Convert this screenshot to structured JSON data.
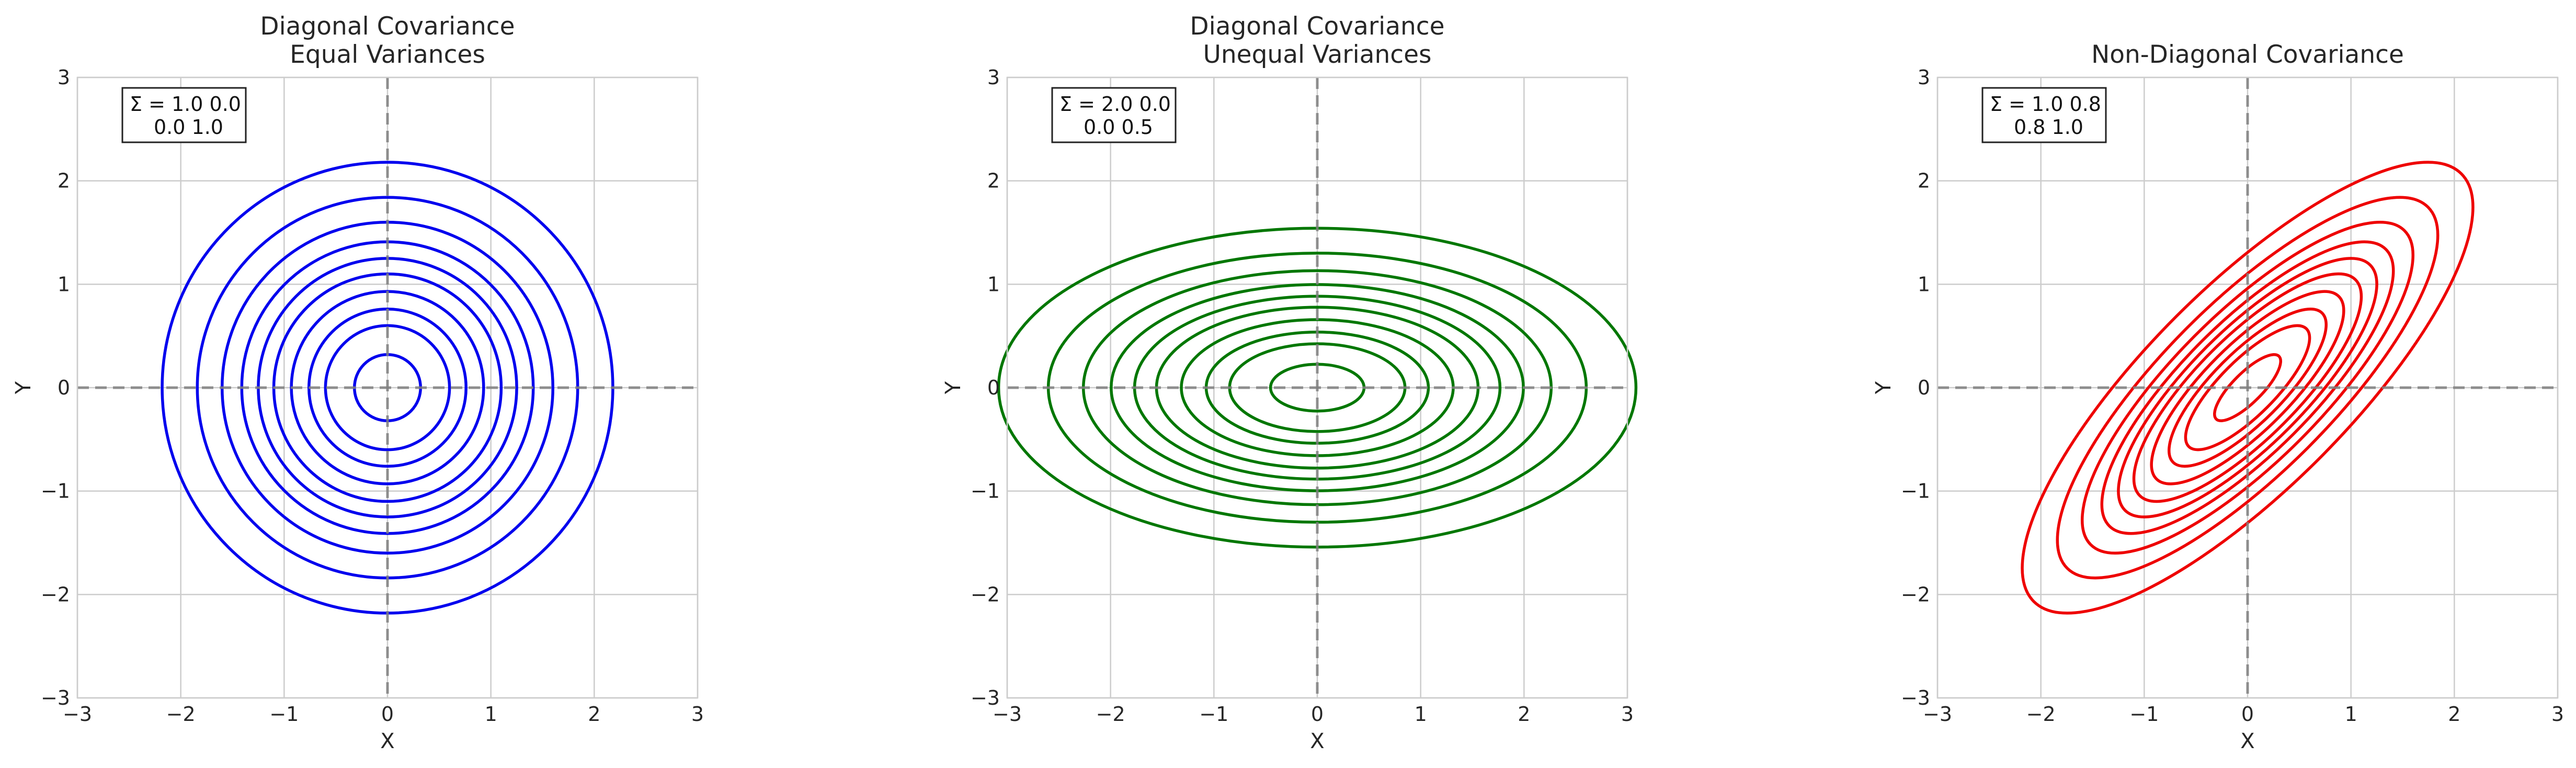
{
  "chart_data": [
    {
      "type": "contour",
      "title_line1": "Diagonal Covariance",
      "title_line2": "Equal Variances",
      "xlabel": "X",
      "ylabel": "Y",
      "xlim": [
        -3,
        3
      ],
      "ylim": [
        -3,
        3
      ],
      "xticks": [
        -3,
        -2,
        -1,
        0,
        1,
        2,
        3
      ],
      "yticks": [
        -3,
        -2,
        -1,
        0,
        1,
        2,
        3
      ],
      "grid": true,
      "covariance": [
        [
          1.0,
          0.0
        ],
        [
          0.0,
          1.0
        ]
      ],
      "annotation_line1": "Σ = 1.0  0.0",
      "annotation_line2": "0.0  1.0",
      "contour_color": "#0000ee",
      "contour_mahalanobis_radii": [
        0.32,
        0.6,
        0.76,
        0.93,
        1.1,
        1.25,
        1.41,
        1.6,
        1.84,
        2.18
      ]
    },
    {
      "type": "contour",
      "title_line1": "Diagonal Covariance",
      "title_line2": "Unequal Variances",
      "xlabel": "X",
      "ylabel": "Y",
      "xlim": [
        -3,
        3
      ],
      "ylim": [
        -3,
        3
      ],
      "xticks": [
        -3,
        -2,
        -1,
        0,
        1,
        2,
        3
      ],
      "yticks": [
        -3,
        -2,
        -1,
        0,
        1,
        2,
        3
      ],
      "grid": true,
      "covariance": [
        [
          2.0,
          0.0
        ],
        [
          0.0,
          0.5
        ]
      ],
      "annotation_line1": "Σ = 2.0  0.0",
      "annotation_line2": "0.0  0.5",
      "contour_color": "#007700",
      "contour_mahalanobis_radii": [
        0.32,
        0.6,
        0.76,
        0.93,
        1.1,
        1.25,
        1.41,
        1.6,
        1.84,
        2.18
      ]
    },
    {
      "type": "contour",
      "title_line1": "Non-Diagonal Covariance",
      "title_line2": "",
      "xlabel": "X",
      "ylabel": "Y",
      "xlim": [
        -3,
        3
      ],
      "ylim": [
        -3,
        3
      ],
      "xticks": [
        -3,
        -2,
        -1,
        0,
        1,
        2,
        3
      ],
      "yticks": [
        -3,
        -2,
        -1,
        0,
        1,
        2,
        3
      ],
      "grid": true,
      "covariance": [
        [
          1.0,
          0.8
        ],
        [
          0.8,
          1.0
        ]
      ],
      "annotation_line1": "Σ = 1.0  0.8",
      "annotation_line2": "0.8  1.0",
      "contour_color": "#ee0000",
      "contour_mahalanobis_radii": [
        0.32,
        0.6,
        0.76,
        0.93,
        1.1,
        1.25,
        1.41,
        1.6,
        1.84,
        2.18
      ]
    }
  ]
}
